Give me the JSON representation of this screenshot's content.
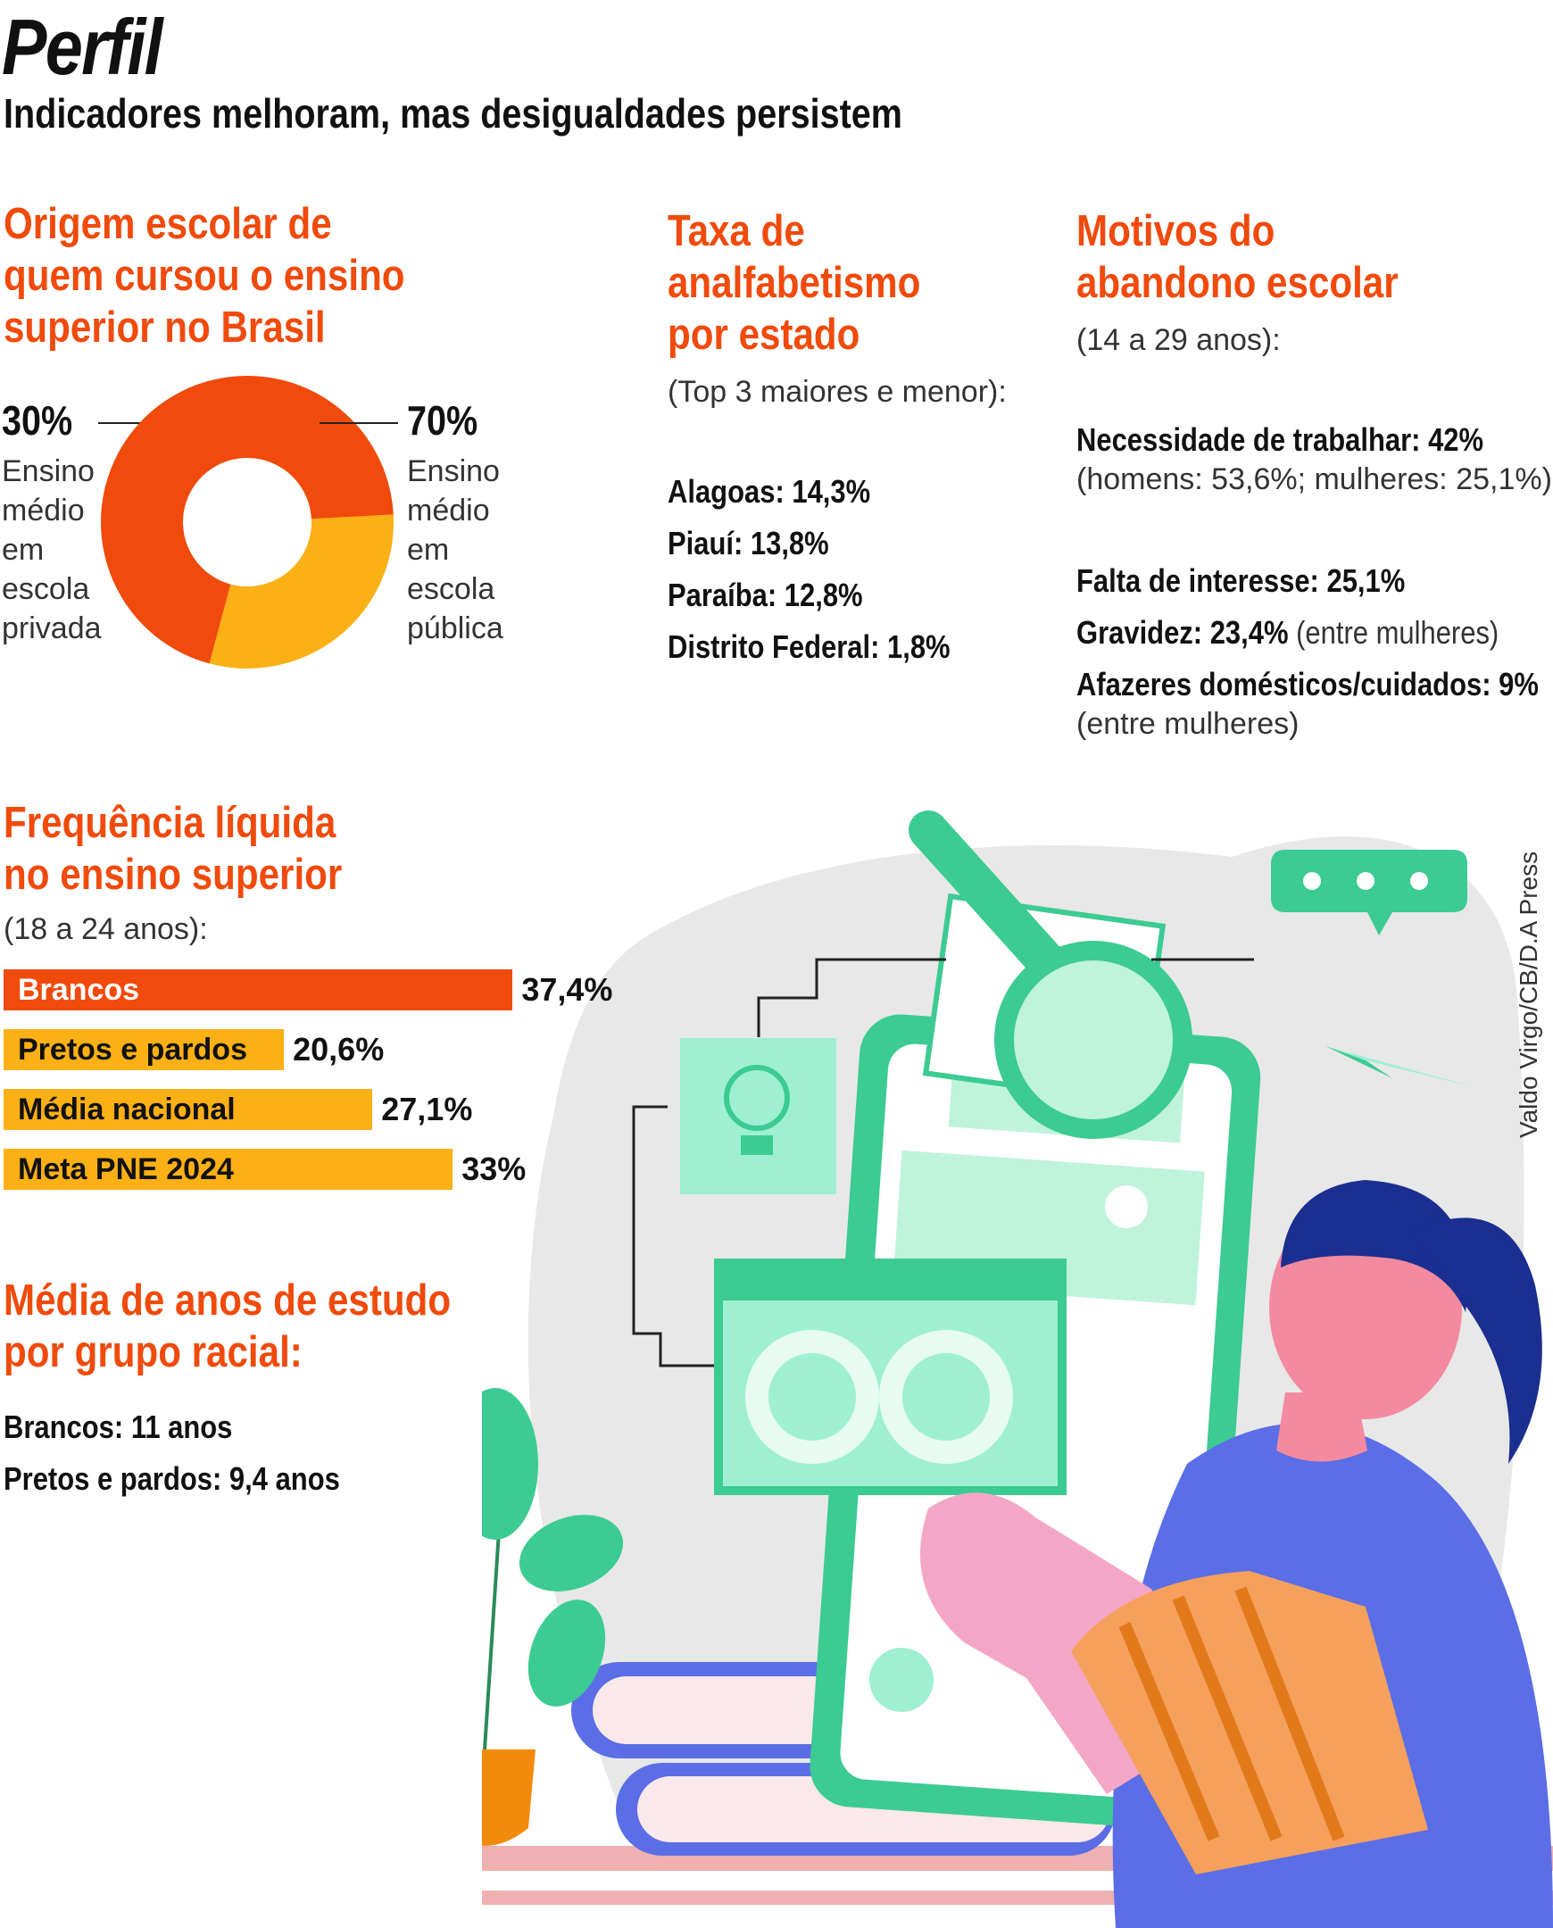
{
  "title": "Perfil",
  "subtitle": "Indicadores melhoram, mas desigualdades persistem",
  "colors": {
    "accent": "#f04a0c",
    "secondary": "#fbb016",
    "illustration_green": "#3ccb92"
  },
  "origem": {
    "title_lines": [
      "Origem escolar de",
      "quem cursou o ensino",
      "superior no Brasil"
    ],
    "left": {
      "pct": "30%",
      "lines": [
        "Ensino",
        "médio",
        "em",
        "escola",
        "privada"
      ]
    },
    "right": {
      "pct": "70%",
      "lines": [
        "Ensino",
        "médio",
        "em",
        "escola",
        "pública"
      ]
    }
  },
  "analfabetismo": {
    "title_lines": [
      "Taxa de",
      "analfabetismo",
      "por estado"
    ],
    "note": "(Top 3 maiores e menor):",
    "items": [
      {
        "label": "Alagoas:",
        "value": "14,3%"
      },
      {
        "label": "Piauí:",
        "value": "13,8%"
      },
      {
        "label": "Paraíba:",
        "value": "12,8%"
      },
      {
        "label": "Distrito Federal:",
        "value": "1,8%"
      }
    ]
  },
  "motivos": {
    "title_lines": [
      "Motivos do",
      "abandono escolar"
    ],
    "note": "(14 a 29 anos):",
    "items": [
      {
        "label": "Necessidade de trabalhar:",
        "value": "42%",
        "detail": "(homens: 53,6%; mulheres: 25,1%)"
      },
      {
        "label": "Falta de interesse:",
        "value": "25,1%",
        "detail": ""
      },
      {
        "label": "Gravidez:",
        "value": "23,4%",
        "detail": "(entre mulheres)"
      },
      {
        "label": "Afazeres domésticos/cuidados:",
        "value": "9%",
        "detail": "(entre mulheres)"
      }
    ]
  },
  "frequencia": {
    "title_lines": [
      "Frequência líquida",
      "no ensino superior"
    ],
    "note": "(18 a 24 anos):"
  },
  "media_anos": {
    "title_lines": [
      "Média de anos de estudo",
      "por grupo racial:"
    ],
    "items": [
      {
        "label": "Brancos:",
        "value": "11 anos"
      },
      {
        "label": "Pretos e pardos:",
        "value": "9,4 anos"
      }
    ]
  },
  "credit": "Valdo Virgo/CB/D.A Press",
  "chart_data": [
    {
      "type": "pie",
      "title": "Origem escolar de quem cursou o ensino superior no Brasil",
      "categories": [
        "Ensino médio em escola privada",
        "Ensino médio em escola pública"
      ],
      "values": [
        30,
        70
      ],
      "colors": [
        "#fbb016",
        "#f04a0c"
      ]
    },
    {
      "type": "bar",
      "title": "Frequência líquida no ensino superior",
      "categories": [
        "Brancos",
        "Pretos e pardos",
        "Média nacional",
        "Meta PNE 2024"
      ],
      "values": [
        37.4,
        20.6,
        27.1,
        33
      ],
      "value_labels": [
        "37,4%",
        "20,6%",
        "27,1%",
        "33%"
      ],
      "colors": [
        "#f04a0c",
        "#fbb016",
        "#fbb016",
        "#fbb016"
      ],
      "orientation": "horizontal"
    }
  ]
}
